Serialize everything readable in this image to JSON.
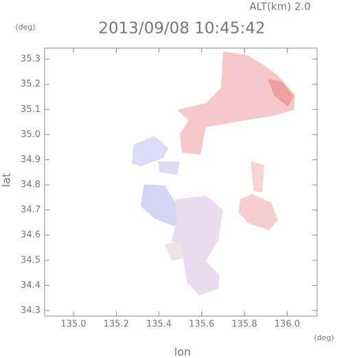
{
  "chart_data": {
    "type": "map",
    "title": "2013/09/08 10:45:42",
    "subtitle": "ALT(km) 2.0",
    "x_label": "lon",
    "y_label": "lat",
    "x_unit": "(deg)",
    "y_unit": "(deg)",
    "xlim": [
      134.865,
      136.14
    ],
    "ylim": [
      34.278,
      35.344
    ],
    "xticks": [
      {
        "value": 135,
        "label": "135.0"
      },
      135.2,
      135.4,
      135.6,
      135.8,
      {
        "value": 136,
        "label": "136.0"
      }
    ],
    "yticks": [
      34.3,
      34.4,
      34.5,
      34.6,
      34.7,
      34.8,
      34.9,
      {
        "value": 35,
        "label": "35.0"
      },
      35.1,
      35.2,
      35.3
    ]
  }
}
